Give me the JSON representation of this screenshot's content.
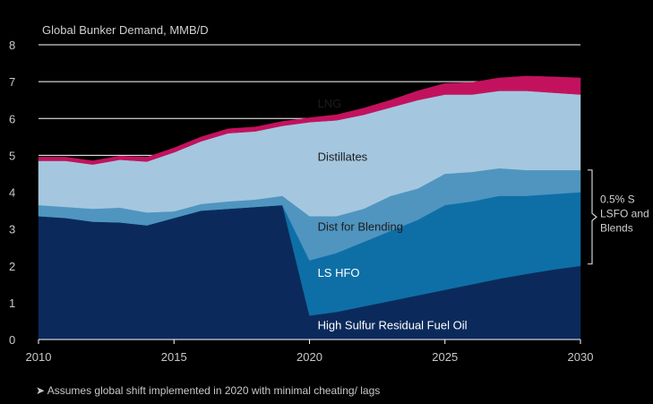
{
  "chart_data": {
    "type": "area",
    "title": "Global Bunker Demand, MMB/D",
    "xlabel": "",
    "ylabel": "",
    "xlim": [
      2010,
      2030
    ],
    "ylim": [
      0,
      8
    ],
    "x_ticks": [
      2010,
      2015,
      2020,
      2025,
      2030
    ],
    "y_ticks": [
      0,
      1,
      2,
      3,
      4,
      5,
      6,
      7,
      8
    ],
    "grid": true,
    "x": [
      2010,
      2011,
      2012,
      2013,
      2014,
      2015,
      2016,
      2017,
      2018,
      2019,
      2020,
      2021,
      2022,
      2023,
      2024,
      2025,
      2026,
      2027,
      2028,
      2029,
      2030
    ],
    "series": [
      {
        "name": "High Sulfur Residual Fuel Oil",
        "color": "#0b2a5b",
        "values": [
          3.35,
          3.3,
          3.2,
          3.18,
          3.1,
          3.3,
          3.5,
          3.55,
          3.6,
          3.65,
          0.65,
          0.75,
          0.9,
          1.05,
          1.2,
          1.35,
          1.5,
          1.65,
          1.78,
          1.9,
          2.0
        ]
      },
      {
        "name": "LS HFO",
        "color": "#0e6fa6",
        "values": [
          0.0,
          0.0,
          0.0,
          0.0,
          0.0,
          0.0,
          0.0,
          0.0,
          0.0,
          0.0,
          1.5,
          1.6,
          1.75,
          1.9,
          2.05,
          2.3,
          2.25,
          2.25,
          2.12,
          2.05,
          2.0
        ]
      },
      {
        "name": "Dist for Blending",
        "color": "#4f95c0",
        "values": [
          0.3,
          0.3,
          0.35,
          0.4,
          0.35,
          0.18,
          0.18,
          0.2,
          0.2,
          0.25,
          1.2,
          1.0,
          0.9,
          0.95,
          0.85,
          0.85,
          0.8,
          0.75,
          0.7,
          0.65,
          0.6
        ]
      },
      {
        "name": "Distillates",
        "color": "#a4c7df",
        "values": [
          1.2,
          1.25,
          1.2,
          1.3,
          1.38,
          1.6,
          1.7,
          1.85,
          1.85,
          1.9,
          2.55,
          2.6,
          2.55,
          2.4,
          2.4,
          2.15,
          2.1,
          2.1,
          2.15,
          2.1,
          2.05
        ]
      },
      {
        "name": "LNG",
        "color": "#c2125e",
        "values": [
          0.1,
          0.1,
          0.1,
          0.1,
          0.12,
          0.12,
          0.12,
          0.12,
          0.12,
          0.12,
          0.12,
          0.15,
          0.18,
          0.2,
          0.25,
          0.3,
          0.33,
          0.35,
          0.4,
          0.43,
          0.45
        ]
      }
    ],
    "labels": [
      {
        "text": "LNG",
        "x": 2020.3,
        "y": 6.3
      },
      {
        "text": "Distillates",
        "x": 2020.3,
        "y": 4.85
      },
      {
        "text": "Dist for  Blending",
        "x": 2020.3,
        "y": 2.95
      },
      {
        "text": "LS HFO",
        "x": 2020.3,
        "y": 1.7
      },
      {
        "text": "High Sulfur Residual Fuel Oil",
        "x": 2020.3,
        "y": 0.28
      }
    ],
    "bracket": {
      "y_from": 2.05,
      "y_to": 4.6,
      "lines": [
        "0.5% S",
        "LSFO and",
        "Blends"
      ]
    },
    "note": "➤ Assumes global shift implemented in 2020 with minimal cheating/ lags"
  }
}
